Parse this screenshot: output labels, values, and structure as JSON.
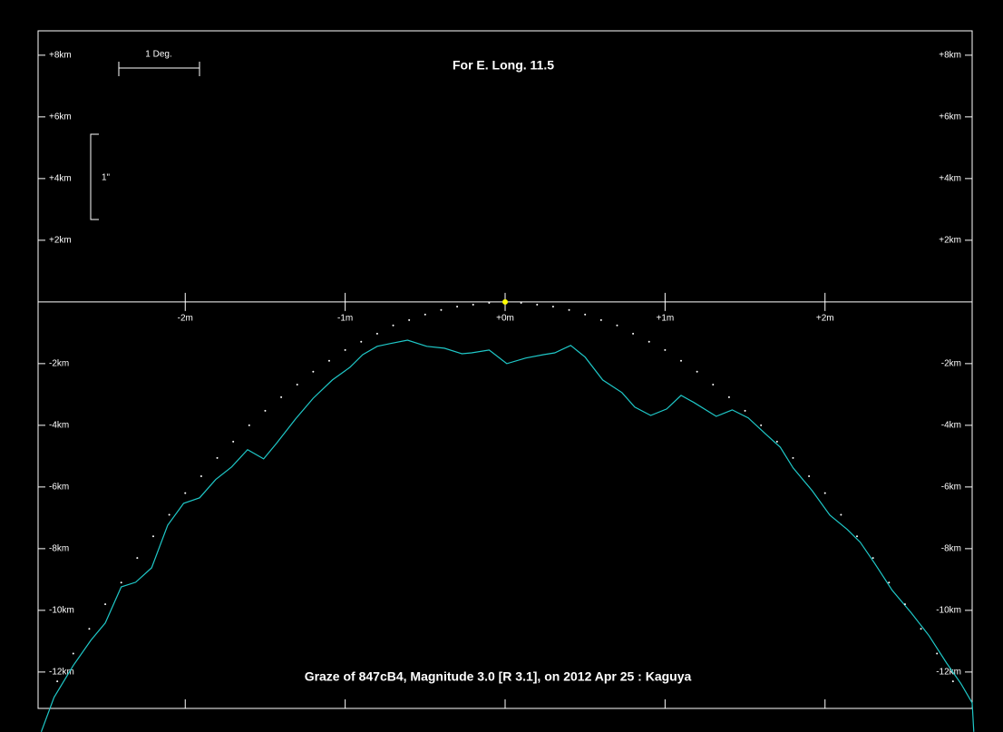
{
  "chart_data": {
    "type": "line",
    "title": "For E. Long. 11.5",
    "caption": "Graze of  847cB4,  Magnitude 3.0 [R 3.1],  on 2012 Apr 25  :  Kaguya",
    "annotations": [
      "1 Deg.",
      "1\""
    ],
    "xlim": [
      -2.92,
      2.92
    ],
    "ylim": [
      -13.18,
      8.79
    ],
    "xticks": [
      {
        "value": -2,
        "label": "-2m"
      },
      {
        "value": -1,
        "label": "-1m"
      },
      {
        "value": 0,
        "label": "+0m"
      },
      {
        "value": 1,
        "label": "+1m"
      },
      {
        "value": 2,
        "label": "+2m"
      }
    ],
    "yticks": [
      {
        "value": 8,
        "label": "+8km"
      },
      {
        "value": 6,
        "label": "+6km"
      },
      {
        "value": 4,
        "label": "+4km"
      },
      {
        "value": 2,
        "label": "+2km"
      },
      {
        "value": -2,
        "label": "-2km"
      },
      {
        "value": -4,
        "label": "-4km"
      },
      {
        "value": -6,
        "label": "-6km"
      },
      {
        "value": -8,
        "label": "-8km"
      },
      {
        "value": -10,
        "label": "-10km"
      },
      {
        "value": -12,
        "label": "-12km"
      }
    ],
    "star": {
      "x": 0,
      "y": 0,
      "color": "#ffff00"
    },
    "series": [
      {
        "color": "#1fc8c8",
        "style": "line",
        "x": [
          -2.9,
          -2.82,
          -2.7,
          -2.59,
          -2.5,
          -2.4,
          -2.31,
          -2.21,
          -2.11,
          -2.01,
          -1.91,
          -1.81,
          -1.71,
          -1.61,
          -1.51,
          -1.43,
          -1.31,
          -1.2,
          -1.08,
          -0.97,
          -0.89,
          -0.8,
          -0.72,
          -0.61,
          -0.49,
          -0.38,
          -0.27,
          -0.21,
          -0.1,
          0.01,
          0.13,
          0.24,
          0.31,
          0.41,
          0.5,
          0.61,
          0.73,
          0.81,
          0.91,
          1.01,
          1.1,
          1.18,
          1.32,
          1.42,
          1.52,
          1.63,
          1.72,
          1.8,
          1.92,
          2.03,
          2.14,
          2.22,
          2.31,
          2.42,
          2.54,
          2.65,
          2.76,
          2.85,
          2.92,
          2.93
        ],
        "values": [
          -13.94,
          -12.82,
          -11.79,
          -10.97,
          -10.41,
          -9.24,
          -9.09,
          -8.62,
          -7.24,
          -6.53,
          -6.35,
          -5.76,
          -5.35,
          -4.79,
          -5.09,
          -4.59,
          -3.79,
          -3.12,
          -2.53,
          -2.12,
          -1.71,
          -1.44,
          -1.35,
          -1.24,
          -1.44,
          -1.5,
          -1.68,
          -1.65,
          -1.56,
          -2.0,
          -1.82,
          -1.71,
          -1.65,
          -1.41,
          -1.79,
          -2.53,
          -2.94,
          -3.41,
          -3.68,
          -3.47,
          -3.03,
          -3.26,
          -3.71,
          -3.5,
          -3.76,
          -4.29,
          -4.71,
          -5.38,
          -6.12,
          -6.91,
          -7.38,
          -7.79,
          -8.47,
          -9.35,
          -10.09,
          -10.82,
          -11.71,
          -12.38,
          -13.0,
          -13.94
        ]
      },
      {
        "color": "#ffffff",
        "style": "dots",
        "x": [
          -2.8,
          -2.7,
          -2.6,
          -2.5,
          -2.4,
          -2.3,
          -2.2,
          -2.1,
          -2.0,
          -1.9,
          -1.8,
          -1.7,
          -1.6,
          -1.5,
          -1.4,
          -1.3,
          -1.2,
          -1.1,
          -1.0,
          -0.9,
          -0.8,
          -0.7,
          -0.6,
          -0.5,
          -0.4,
          -0.3,
          -0.2,
          -0.1,
          0.1,
          0.2,
          0.3,
          0.4,
          0.5,
          0.6,
          0.7,
          0.8,
          0.9,
          1.0,
          1.1,
          1.2,
          1.3,
          1.4,
          1.5,
          1.6,
          1.7,
          1.8,
          1.9,
          2.0,
          2.1,
          2.2,
          2.3,
          2.4,
          2.5,
          2.6,
          2.7,
          2.8
        ],
        "values": [
          -12.3,
          -11.4,
          -10.6,
          -9.8,
          -9.1,
          -8.3,
          -7.6,
          -6.9,
          -6.2,
          -5.65,
          -5.06,
          -4.53,
          -4.0,
          -3.53,
          -3.09,
          -2.68,
          -2.26,
          -1.91,
          -1.56,
          -1.29,
          -1.03,
          -0.76,
          -0.59,
          -0.41,
          -0.26,
          -0.15,
          -0.09,
          -0.03,
          -0.03,
          -0.09,
          -0.15,
          -0.26,
          -0.41,
          -0.59,
          -0.76,
          -1.03,
          -1.29,
          -1.56,
          -1.91,
          -2.26,
          -2.68,
          -3.09,
          -3.53,
          -4.0,
          -4.53,
          -5.06,
          -5.65,
          -6.2,
          -6.9,
          -7.6,
          -8.3,
          -9.1,
          -9.8,
          -10.6,
          -11.4,
          -12.3
        ]
      }
    ]
  }
}
